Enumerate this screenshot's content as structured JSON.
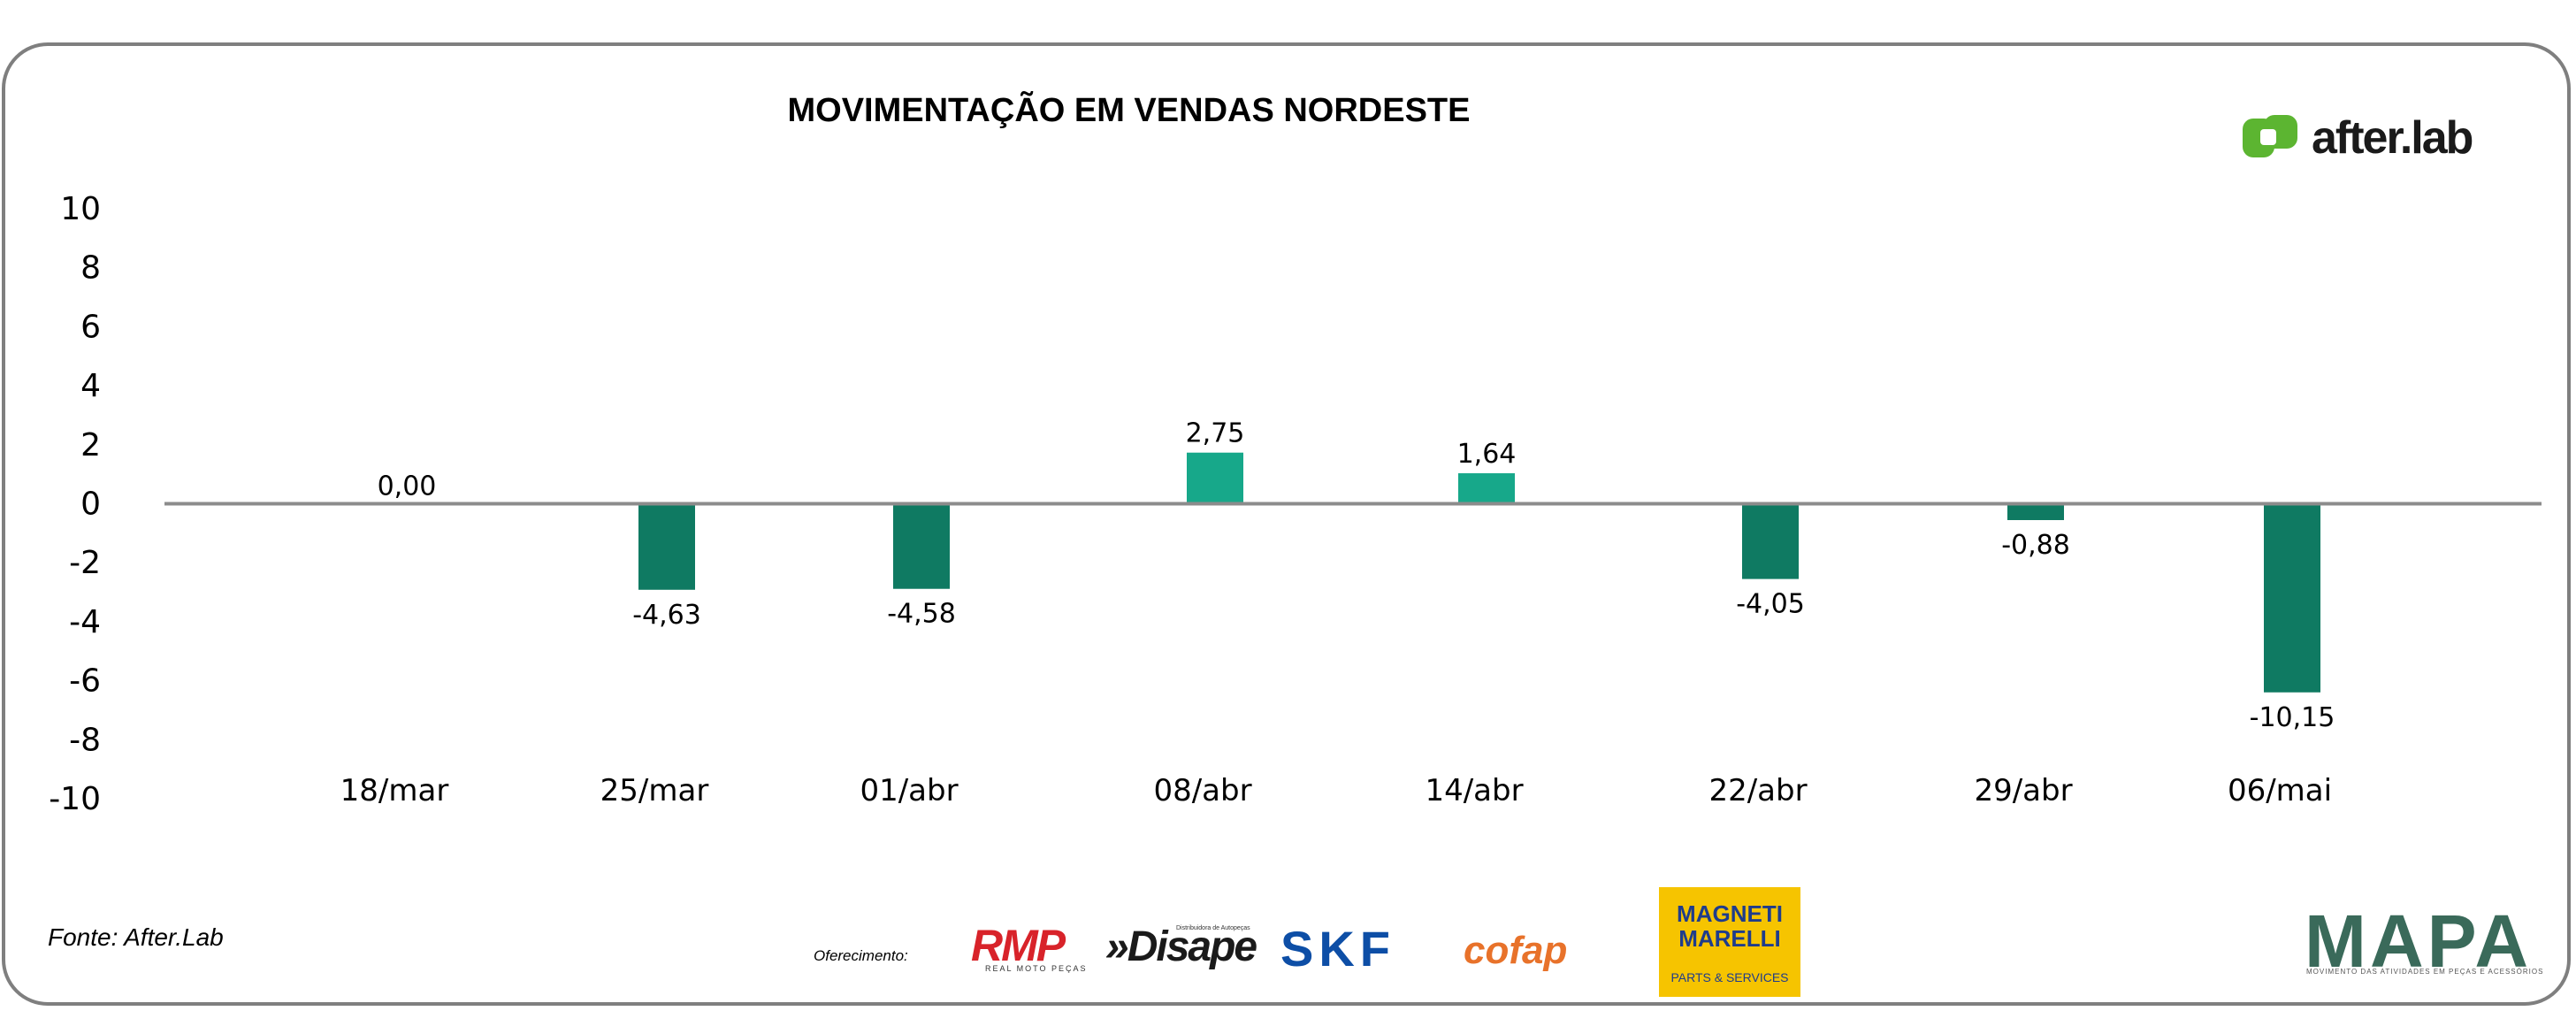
{
  "title": "MOVIMENTAÇÃO EM VENDAS NORDESTE",
  "brand": {
    "name": "after.lab",
    "color": "#5cb531"
  },
  "source": "Fonte: After.Lab",
  "sponsors": {
    "label": "Oferecimento:",
    "logos": [
      {
        "name": "RMP",
        "subtitle": "REAL MOTO PEÇAS"
      },
      {
        "name": "»Disape",
        "subtitle": "Distribuidora de Autopeças"
      },
      {
        "name": "SKF"
      },
      {
        "name": "cofap"
      },
      {
        "name": "MAGNETI MARELLI",
        "subtitle": "PARTS & SERVICES"
      }
    ]
  },
  "footer_logo": {
    "name": "MAPA",
    "subtitle": "MOVIMENTO DAS ATIVIDADES EM PEÇAS E ACESSÓRIOS"
  },
  "colors": {
    "negative_bar": "#0f7a62",
    "positive_bar": "#17a88a",
    "axis": "#8c8c8c"
  },
  "chart_data": {
    "type": "bar",
    "title": "MOVIMENTAÇÃO EM VENDAS NORDESTE",
    "categories": [
      "18/mar",
      "25/mar",
      "01/abr",
      "08/abr",
      "14/abr",
      "22/abr",
      "29/abr",
      "06/mai"
    ],
    "values": [
      0.0,
      -4.63,
      -4.58,
      2.75,
      1.64,
      -4.05,
      -0.88,
      -10.15
    ],
    "data_labels": [
      "0,00",
      "-4,63",
      "-4,58",
      "2,75",
      "1,64",
      "-4,05",
      "-0,88",
      "-10,15"
    ],
    "yticks": [
      "10",
      "8",
      "6",
      "4",
      "2",
      "0",
      "-2",
      "-4",
      "-6",
      "-8",
      "-10"
    ],
    "ylim": [
      -10,
      10
    ],
    "bar_heights_scale_note": "",
    "grid": false,
    "legend": "none"
  }
}
